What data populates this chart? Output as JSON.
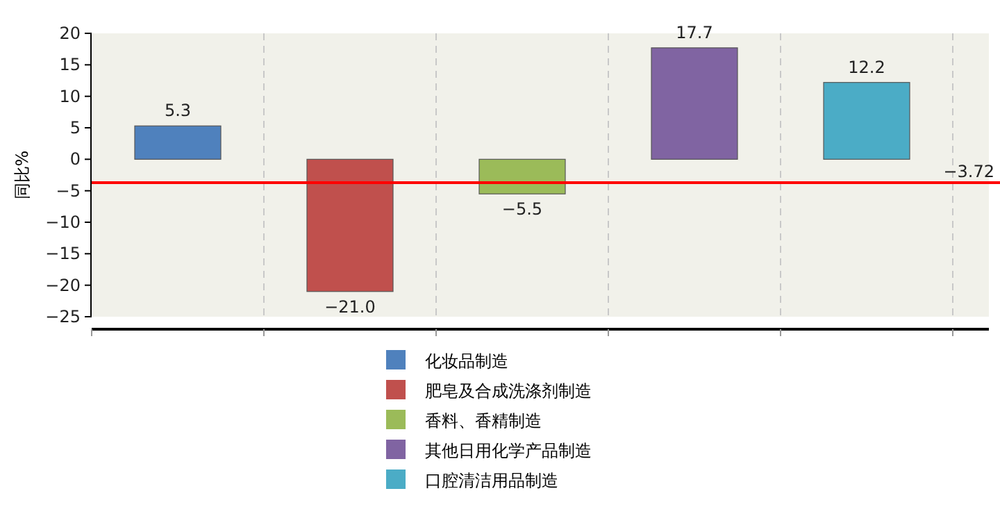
{
  "chart_data": {
    "type": "bar",
    "ylabel": "同比%",
    "categories": [
      null,
      null,
      null,
      null,
      null
    ],
    "series": [
      {
        "name": "化妆品制造",
        "color": "#4f81bd",
        "values": [
          5.3,
          null,
          null,
          null,
          null
        ]
      },
      {
        "name": "肥皂及合成洗涤剂制造",
        "color": "#c0504d",
        "values": [
          null,
          -21.0,
          null,
          null,
          null
        ]
      },
      {
        "name": "香料、香精制造",
        "color": "#9bbb59",
        "values": [
          null,
          null,
          -5.5,
          null,
          null
        ]
      },
      {
        "name": "其他日用化学产品制造",
        "color": "#8064a2",
        "values": [
          null,
          null,
          null,
          17.7,
          null
        ]
      },
      {
        "name": "口腔清洁用品制造",
        "color": "#4bacc6",
        "values": [
          null,
          null,
          null,
          null,
          12.2
        ]
      }
    ],
    "value_labels": [
      "5.3",
      "−21.0",
      "−5.5",
      "17.7",
      "12.2"
    ],
    "ylim": [
      -25,
      20
    ],
    "yticks": [
      20,
      15,
      10,
      5,
      0,
      -5,
      -10,
      -15,
      -20,
      -25
    ],
    "ref_lines": [
      {
        "axis": "y",
        "value": -3.72,
        "label": "−3.72",
        "color": "#ff0000"
      }
    ],
    "grid": "x",
    "legend": "bottom",
    "tick_labels": "y"
  }
}
